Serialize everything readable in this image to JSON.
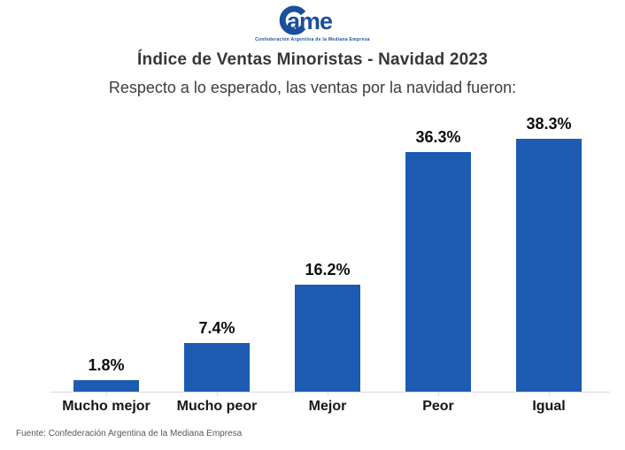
{
  "logo": {
    "name": "CAME",
    "wordmark_text": "ame",
    "tagline": "Confederación Argentina de la Mediana Empresa",
    "color": "#1a4f9c"
  },
  "header": {
    "title": "Índice de Ventas Minoristas - Navidad 2023",
    "subtitle": "Respecto a lo esperado, las ventas por la navidad fueron:"
  },
  "chart_data": {
    "type": "bar",
    "categories": [
      "Mucho mejor",
      "Mucho peor",
      "Mejor",
      "Peor",
      "Igual"
    ],
    "values": [
      1.8,
      7.4,
      16.2,
      36.3,
      38.3
    ],
    "value_labels": [
      "1.8%",
      "7.4%",
      "16.2%",
      "36.3%",
      "38.3%"
    ],
    "title": "Índice de Ventas Minoristas - Navidad 2023",
    "subtitle": "Respecto a lo esperado, las ventas por la navidad fueron:",
    "xlabel": "",
    "ylabel": "",
    "ylim": [
      0,
      40
    ],
    "grid": false,
    "legend": false,
    "unit": "%",
    "bar_color": "#1d5bb2",
    "axis_color": "#d9d9d9"
  },
  "footer": {
    "source": "Fuente: Confederación Argentina de la Mediana Empresa"
  }
}
